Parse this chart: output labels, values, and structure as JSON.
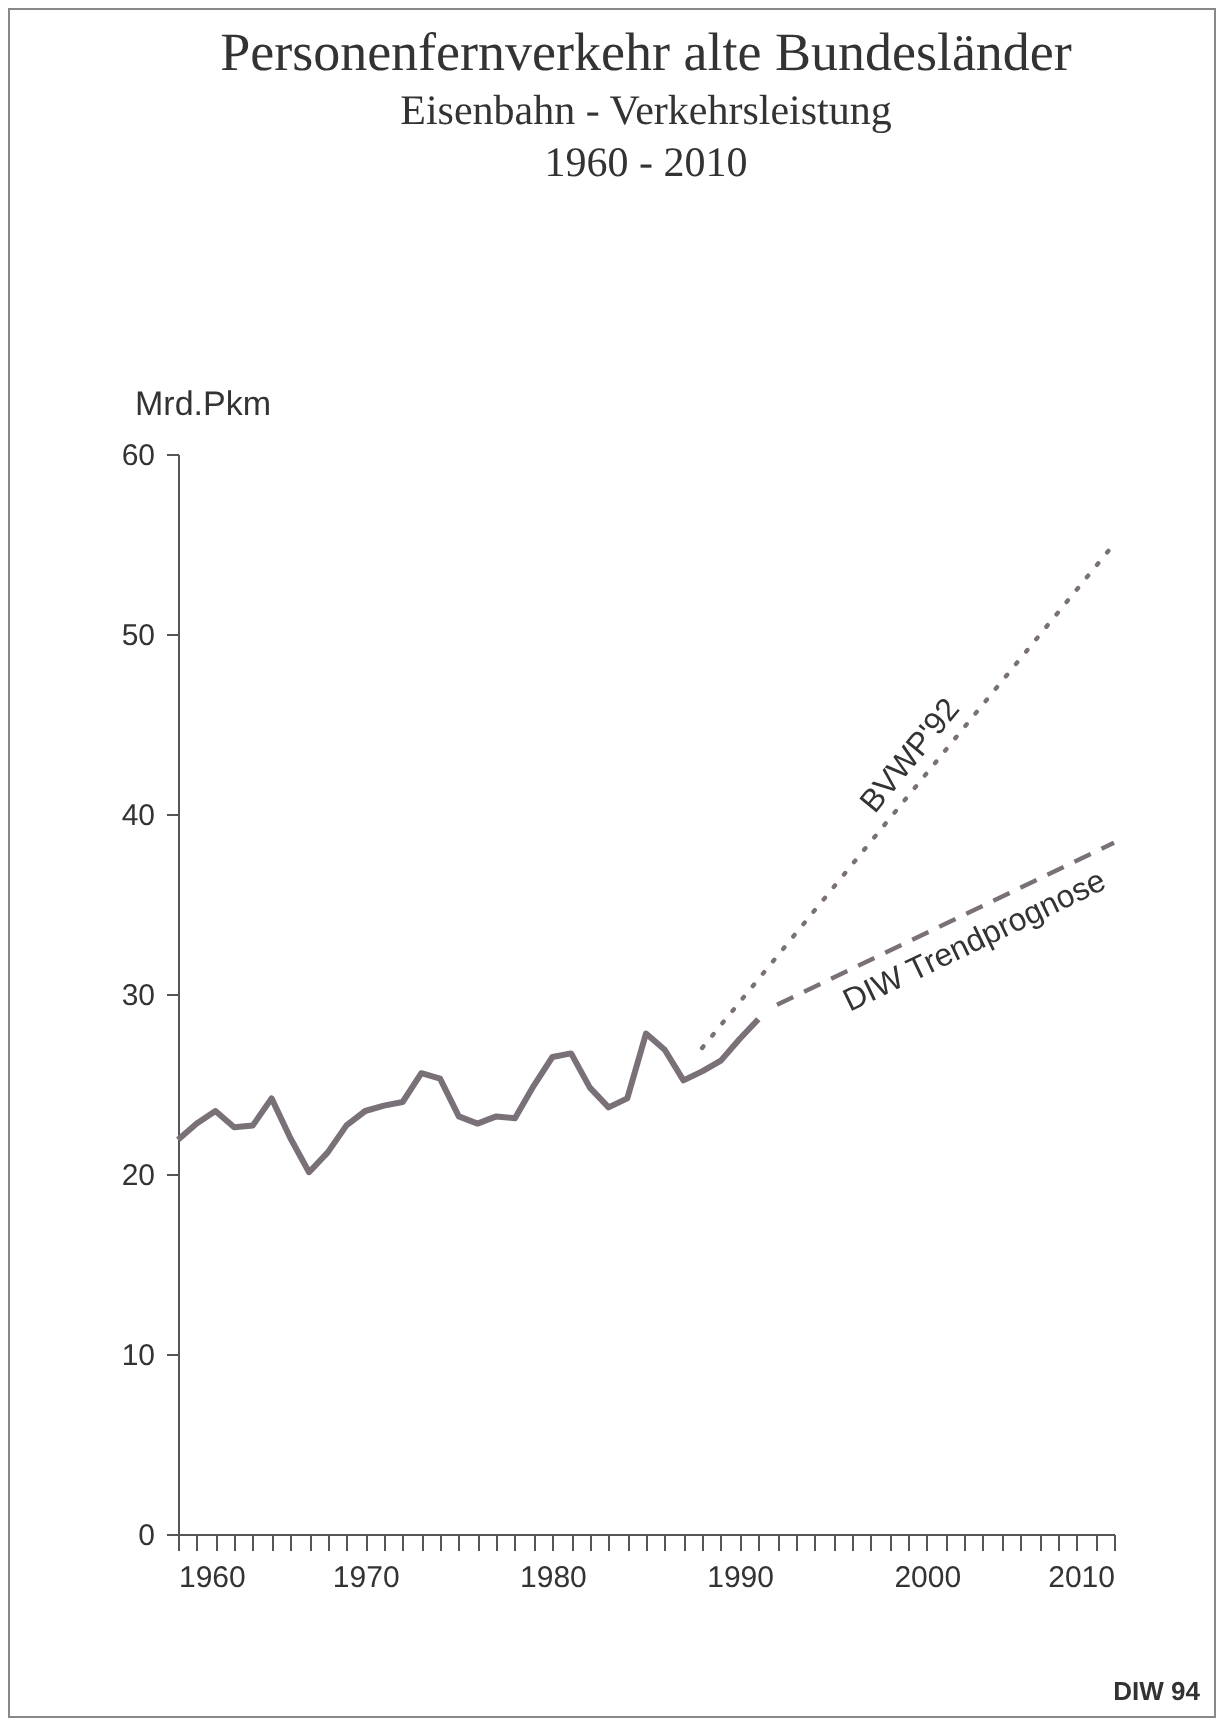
{
  "chart_data": {
    "type": "line",
    "title": "Personenfernverkehr alte Bundesländer",
    "subtitle": [
      "Eisenbahn - Verkehrsleistung",
      "1960 - 2010"
    ],
    "ylabel": "Mrd.Pkm",
    "xlim": [
      1960,
      2010
    ],
    "xticks": [
      1960,
      {
        "value": 1961,
        "label": null
      },
      {
        "value": 1962,
        "label": null
      },
      {
        "value": 1963,
        "label": null
      },
      {
        "value": 1964,
        "label": null
      },
      {
        "value": 1965,
        "label": null
      },
      {
        "value": 1966,
        "label": null
      },
      {
        "value": 1967,
        "label": null
      },
      {
        "value": 1968,
        "label": null
      },
      {
        "value": 1969,
        "label": null
      },
      1970,
      {
        "value": 1971,
        "label": null
      },
      {
        "value": 1972,
        "label": null
      },
      {
        "value": 1973,
        "label": null
      },
      {
        "value": 1974,
        "label": null
      },
      {
        "value": 1975,
        "label": null
      },
      {
        "value": 1976,
        "label": null
      },
      {
        "value": 1977,
        "label": null
      },
      {
        "value": 1978,
        "label": null
      },
      {
        "value": 1979,
        "label": null
      },
      1980,
      {
        "value": 1981,
        "label": null
      },
      {
        "value": 1982,
        "label": null
      },
      {
        "value": 1983,
        "label": null
      },
      {
        "value": 1984,
        "label": null
      },
      {
        "value": 1985,
        "label": null
      },
      {
        "value": 1986,
        "label": null
      },
      {
        "value": 1987,
        "label": null
      },
      {
        "value": 1988,
        "label": null
      },
      {
        "value": 1989,
        "label": null
      },
      1990,
      {
        "value": 1991,
        "label": null
      },
      {
        "value": 1992,
        "label": null
      },
      {
        "value": 1993,
        "label": null
      },
      {
        "value": 1994,
        "label": null
      },
      {
        "value": 1995,
        "label": null
      },
      {
        "value": 1996,
        "label": null
      },
      {
        "value": 1997,
        "label": null
      },
      {
        "value": 1998,
        "label": null
      },
      {
        "value": 1999,
        "label": null
      },
      2000,
      {
        "value": 2001,
        "label": null
      },
      {
        "value": 2002,
        "label": null
      },
      {
        "value": 2003,
        "label": null
      },
      {
        "value": 2004,
        "label": null
      },
      {
        "value": 2005,
        "label": null
      },
      {
        "value": 2006,
        "label": null
      },
      {
        "value": 2007,
        "label": null
      },
      {
        "value": 2008,
        "label": null
      },
      {
        "value": 2009,
        "label": null
      },
      2010
    ],
    "ylim": [
      0,
      60
    ],
    "yticks": [
      0,
      10,
      20,
      30,
      40,
      50,
      60
    ],
    "grid": false,
    "series": [
      {
        "color": "#7a7078",
        "line_style": "solid",
        "x": [
          1960,
          1961,
          1962,
          1963,
          1964,
          1965,
          1966,
          1967,
          1968,
          1969,
          1970,
          1971,
          1972,
          1973,
          1974,
          1975,
          1976,
          1977,
          1978,
          1979,
          1980,
          1981,
          1982,
          1983,
          1984,
          1985,
          1986,
          1987,
          1988,
          1989,
          1990,
          1991
        ],
        "values": [
          21.9,
          22.8,
          23.5,
          22.6,
          22.7,
          24.2,
          22.0,
          20.1,
          21.2,
          22.7,
          23.5,
          23.8,
          24.0,
          25.6,
          25.3,
          23.2,
          22.8,
          23.2,
          23.1,
          24.9,
          26.5,
          26.7,
          24.8,
          23.7,
          24.2,
          27.8,
          26.9,
          25.2,
          25.7,
          26.3,
          27.5,
          28.6
        ]
      },
      {
        "name": "BVWP'92",
        "color": "#7a7078",
        "line_style": "dotted",
        "x": [
          1988,
          2010
        ],
        "values": [
          27,
          55
        ]
      },
      {
        "name": "DIW Trendprognose",
        "color": "#7a7078",
        "line_style": "dashed",
        "x": [
          1992,
          2010
        ],
        "values": [
          29.4,
          38.4
        ]
      }
    ],
    "annotations": [
      "DIW 94"
    ]
  }
}
